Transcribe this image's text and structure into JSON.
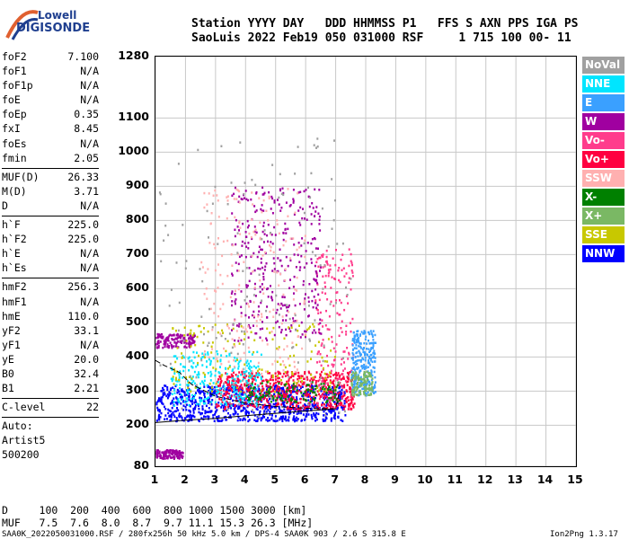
{
  "logo": {
    "top": "Lowell",
    "bottom": "DIGISONDE"
  },
  "header": {
    "line1": "Station YYYY DAY   DDD HHMMSS P1   FFS S AXN PPS IGA PS",
    "line2": "SaoLuis 2022 Feb19 050 031000 RSF     1 715 100 00- 11"
  },
  "params": [
    {
      "name": "foF2",
      "value": "7.100"
    },
    {
      "name": "foF1",
      "value": "N/A"
    },
    {
      "name": "foF1p",
      "value": "N/A"
    },
    {
      "name": "foE",
      "value": "N/A"
    },
    {
      "name": "foEp",
      "value": "0.35"
    },
    {
      "name": "fxI",
      "value": "8.45"
    },
    {
      "name": "foEs",
      "value": "N/A"
    },
    {
      "name": "fmin",
      "value": "2.05"
    },
    {
      "sep": true
    },
    {
      "name": "MUF(D)",
      "value": "26.33"
    },
    {
      "name": "M(D)",
      "value": "3.71"
    },
    {
      "name": "D",
      "value": "N/A"
    },
    {
      "sep": true
    },
    {
      "name": "h`F",
      "value": "225.0"
    },
    {
      "name": "h`F2",
      "value": "225.0"
    },
    {
      "name": "h`E",
      "value": "N/A"
    },
    {
      "name": "h`Es",
      "value": "N/A"
    },
    {
      "sep": true
    },
    {
      "name": "hmF2",
      "value": "256.3"
    },
    {
      "name": "hmF1",
      "value": "N/A"
    },
    {
      "name": "hmE",
      "value": "110.0"
    },
    {
      "name": "yF2",
      "value": "33.1"
    },
    {
      "name": "yF1",
      "value": "N/A"
    },
    {
      "name": "yE",
      "value": "20.0"
    },
    {
      "name": "B0",
      "value": "32.4"
    },
    {
      "name": "B1",
      "value": "2.21"
    },
    {
      "sep": true
    },
    {
      "name": "C-level",
      "value": "22"
    },
    {
      "sep": true
    },
    {
      "name": "Auto:",
      "value": ""
    },
    {
      "name": "Artist5",
      "value": ""
    },
    {
      "name": "500200",
      "value": ""
    }
  ],
  "legend": [
    {
      "label": "NoVal",
      "color": "#a0a0a0"
    },
    {
      "label": "NNE",
      "color": "#00e5ff"
    },
    {
      "label": "E",
      "color": "#3aa0ff"
    },
    {
      "label": "W",
      "color": "#a000a0"
    },
    {
      "label": "Vo-",
      "color": "#ff3c8c"
    },
    {
      "label": "Vo+",
      "color": "#ff0040"
    },
    {
      "label": "SSW",
      "color": "#ffb0b0"
    },
    {
      "label": "X-",
      "color": "#008000"
    },
    {
      "label": "X+",
      "color": "#7ab864"
    },
    {
      "label": "SSE",
      "color": "#c8c800"
    },
    {
      "label": "NNW",
      "color": "#0000ff"
    }
  ],
  "bottom": {
    "line1": "D     100  200  400  600  800 1000 1500 3000 [km]",
    "line2": "MUF   7.5  7.6  8.0  8.7  9.7 11.1 15.3 26.3 [MHz]",
    "footer_left": "SAA0K_2022050031000.RSF / 280fx256h 50 kHz 5.0 km / DPS-4 SAA0K 903 / 2.6 S 315.8 E",
    "footer_right": "Ion2Png 1.3.17"
  },
  "chart_data": {
    "type": "scatter",
    "title": "",
    "xlabel": "",
    "ylabel": "",
    "xlim": [
      1,
      15
    ],
    "ylim": [
      80,
      1280
    ],
    "x_ticks": [
      1,
      2,
      3,
      4,
      5,
      6,
      7,
      8,
      9,
      10,
      11,
      12,
      13,
      14,
      15
    ],
    "y_ticks": [
      80,
      200,
      300,
      400,
      500,
      600,
      700,
      800,
      900,
      1000,
      1100,
      1280
    ],
    "grid": true,
    "clusters": [
      {
        "name": "NNW",
        "color": "#0000ff",
        "xrange": [
          1.0,
          7.3
        ],
        "yrange": [
          215,
          320
        ],
        "count": 900
      },
      {
        "name": "Vo+",
        "color": "#ff0040",
        "xrange": [
          3.0,
          7.6
        ],
        "yrange": [
          250,
          360
        ],
        "count": 600
      },
      {
        "name": "Vo-",
        "color": "#ff3c8c",
        "xrange": [
          6.3,
          7.6
        ],
        "yrange": [
          260,
          720
        ],
        "count": 180
      },
      {
        "name": "E",
        "color": "#3aa0ff",
        "xrange": [
          7.5,
          8.3
        ],
        "yrange": [
          290,
          480
        ],
        "count": 260
      },
      {
        "name": "X+",
        "color": "#7ab864",
        "xrange": [
          7.5,
          8.2
        ],
        "yrange": [
          290,
          360
        ],
        "count": 120
      },
      {
        "name": "NNE",
        "color": "#00e5ff",
        "xrange": [
          1.5,
          4.5
        ],
        "yrange": [
          260,
          420
        ],
        "count": 260
      },
      {
        "name": "W",
        "color": "#a000a0",
        "xrange": [
          1.0,
          2.3
        ],
        "yrange": [
          430,
          470
        ],
        "count": 140
      },
      {
        "name": "W",
        "color": "#a000a0",
        "xrange": [
          1.0,
          1.9
        ],
        "yrange": [
          105,
          130
        ],
        "count": 120
      },
      {
        "name": "W",
        "color": "#a000a0",
        "xrange": [
          3.5,
          6.5
        ],
        "yrange": [
          450,
          900
        ],
        "count": 350
      },
      {
        "name": "SSE",
        "color": "#c8c800",
        "xrange": [
          1.5,
          7.0
        ],
        "yrange": [
          300,
          500
        ],
        "count": 150
      },
      {
        "name": "SSW",
        "color": "#ffb0b0",
        "xrange": [
          2.5,
          6.0
        ],
        "yrange": [
          350,
          900
        ],
        "count": 200
      },
      {
        "name": "X-",
        "color": "#008000",
        "xrange": [
          4.0,
          7.2
        ],
        "yrange": [
          270,
          330
        ],
        "count": 120
      },
      {
        "name": "NoVal",
        "color": "#a0a0a0",
        "xrange": [
          1.0,
          7.5
        ],
        "yrange": [
          220,
          1050
        ],
        "count": 150
      }
    ],
    "trace": {
      "name": "virtual height profile",
      "points": [
        [
          1.0,
          390
        ],
        [
          1.3,
          375
        ],
        [
          1.8,
          355
        ],
        [
          2.2,
          320
        ],
        [
          3.0,
          285
        ],
        [
          4.0,
          265
        ],
        [
          5.0,
          255
        ],
        [
          6.0,
          250
        ],
        [
          7.0,
          248
        ],
        [
          7.1,
          290
        ]
      ],
      "lower": [
        [
          1.0,
          208
        ],
        [
          2.0,
          215
        ],
        [
          3.0,
          220
        ],
        [
          4.0,
          228
        ],
        [
          5.0,
          235
        ],
        [
          6.0,
          242
        ],
        [
          7.0,
          248
        ]
      ]
    }
  }
}
